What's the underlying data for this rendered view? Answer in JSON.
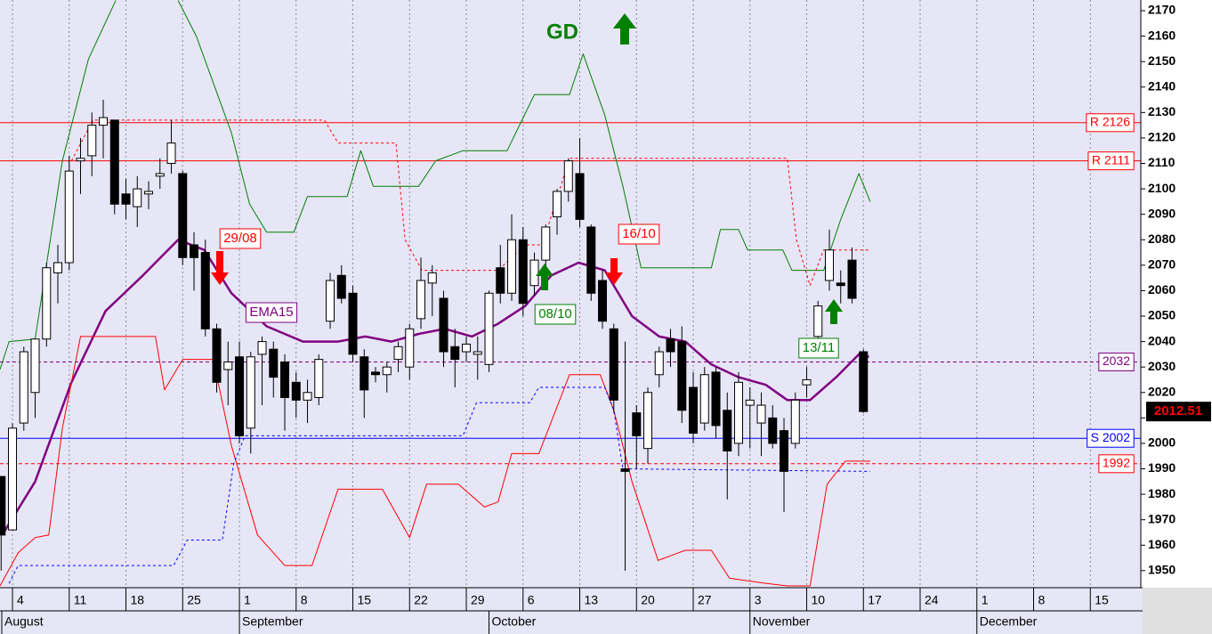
{
  "chart_data": {
    "type": "candlestick",
    "ylim": [
      1943.3,
      2174.2
    ],
    "yticks": [
      1950,
      1960,
      1970,
      1980,
      1990,
      2000,
      2010,
      2020,
      2030,
      2040,
      2050,
      2060,
      2070,
      2080,
      2090,
      2100,
      2110,
      2120,
      2130,
      2140,
      2150,
      2160,
      2170
    ],
    "xlim": [
      -1.1,
      99.45
    ],
    "xticks": [
      {
        "value": 0,
        "label": "4"
      },
      {
        "value": 5,
        "label": "11"
      },
      {
        "value": 10,
        "label": "18"
      },
      {
        "value": 15,
        "label": "25"
      },
      {
        "value": 20,
        "label": "1"
      },
      {
        "value": 25,
        "label": "8"
      },
      {
        "value": 30,
        "label": "15"
      },
      {
        "value": 35,
        "label": "22"
      },
      {
        "value": 40,
        "label": "29"
      },
      {
        "value": 45,
        "label": "6"
      },
      {
        "value": 50,
        "label": "13"
      },
      {
        "value": 55,
        "label": "20"
      },
      {
        "value": 60,
        "label": "27"
      },
      {
        "value": 65,
        "label": "3"
      },
      {
        "value": 70,
        "label": "10"
      },
      {
        "value": 75,
        "label": "17"
      },
      {
        "value": 80,
        "label": "24"
      },
      {
        "value": 85,
        "label": "1"
      },
      {
        "value": 90,
        "label": "8"
      },
      {
        "value": 95,
        "label": "15"
      }
    ],
    "month_ticks": [
      {
        "value": -1,
        "label": "August"
      },
      {
        "value": 20,
        "label": "September"
      },
      {
        "value": 42,
        "label": "October"
      },
      {
        "value": 65,
        "label": "November"
      },
      {
        "value": 85,
        "label": "December"
      }
    ],
    "grid": true,
    "candles": {
      "up_color": "#ffffff",
      "down_color": "#000000",
      "x": [
        -1,
        0,
        1,
        2,
        3,
        4,
        5,
        6,
        7,
        8,
        9,
        10,
        11,
        12,
        13,
        14,
        15,
        16,
        17,
        18,
        19,
        20,
        21,
        22,
        23,
        24,
        25,
        26,
        27,
        28,
        29,
        30,
        31,
        32,
        33,
        34,
        35,
        36,
        37,
        38,
        39,
        40,
        41,
        42,
        43,
        44,
        45,
        46,
        47,
        48,
        49,
        50,
        51,
        52,
        53,
        54,
        55,
        56,
        57,
        58,
        59,
        60,
        61,
        62,
        63,
        64,
        65,
        66,
        67,
        68,
        69,
        70,
        71,
        72,
        73,
        74,
        75
      ],
      "open": [
        1987,
        1966,
        2008,
        2020,
        2041,
        2067,
        2071,
        2111,
        2113,
        2125,
        2127,
        2098,
        2093,
        2098,
        2105,
        2110,
        2106,
        2078,
        2075,
        2045,
        2029,
        2034,
        2006,
        2035,
        2037,
        2032,
        2024,
        2017,
        2018,
        2048,
        2066,
        2059,
        2034,
        2028,
        2027,
        2033,
        2030,
        2049,
        2063,
        2057,
        2038,
        2036,
        2035,
        2031,
        2069,
        2059,
        2080,
        2062,
        2072,
        2089,
        2099,
        2106,
        2085,
        2064,
        2045,
        1990,
        2012,
        1998,
        2027,
        2041,
        2040,
        2022,
        2008,
        2028,
        2013,
        2000,
        2015,
        2008,
        2010,
        2005,
        2000,
        2023,
        2042,
        2064,
        2063,
        2072,
        2036
      ],
      "high": [
        1987,
        2008,
        2038,
        2041,
        2071,
        2078,
        2113,
        2120,
        2130,
        2135,
        2127,
        2104,
        2105,
        2103,
        2112,
        2127,
        2107,
        2083,
        2080,
        2047,
        2040,
        2040,
        2036,
        2042,
        2040,
        2035,
        2028,
        2025,
        2035,
        2067,
        2070,
        2062,
        2037,
        2030,
        2032,
        2040,
        2047,
        2073,
        2070,
        2060,
        2045,
        2042,
        2042,
        2060,
        2078,
        2090,
        2085,
        2075,
        2086,
        2100,
        2112,
        2120,
        2086,
        2068,
        2047,
        2040,
        2015,
        2022,
        2038,
        2045,
        2046,
        2028,
        2030,
        2030,
        2020,
        2028,
        2022,
        2020,
        2015,
        2010,
        2020,
        2030,
        2056,
        2084,
        2068,
        2077,
        2037
      ],
      "low": [
        1950,
        1966,
        2005,
        2010,
        2038,
        2055,
        2068,
        2098,
        2105,
        2112,
        2090,
        2088,
        2085,
        2092,
        2100,
        2106,
        2070,
        2060,
        2042,
        2020,
        2015,
        2000,
        1996,
        2015,
        2018,
        2005,
        2010,
        2008,
        2015,
        2045,
        2055,
        2032,
        2010,
        2024,
        2020,
        2028,
        2025,
        2045,
        2050,
        2030,
        2022,
        2032,
        2025,
        2028,
        2055,
        2056,
        2050,
        2058,
        2068,
        2082,
        2095,
        2085,
        2056,
        2045,
        2012,
        1950,
        1990,
        1992,
        2022,
        2030,
        2008,
        2000,
        2005,
        2002,
        1978,
        1995,
        1998,
        1995,
        1998,
        1973,
        1998,
        2018,
        2040,
        2060,
        2055,
        2055,
        2012
      ],
      "close": [
        1964,
        2006,
        2036,
        2041,
        2069,
        2071,
        2107,
        2112,
        2125,
        2128,
        2094,
        2094,
        2100,
        2099,
        2106,
        2118,
        2073,
        2073,
        2045,
        2024,
        2032,
        2003,
        2034,
        2040,
        2026,
        2018,
        2017,
        2020,
        2033,
        2064,
        2057,
        2035,
        2021,
        2027,
        2030,
        2038,
        2045,
        2064,
        2067,
        2036,
        2033,
        2039,
        2036,
        2059,
        2059,
        2080,
        2055,
        2072,
        2085,
        2099,
        2111,
        2088,
        2059,
        2048,
        2017,
        1989,
        2003,
        2020,
        2036,
        2036,
        2013,
        2004,
        2027,
        2007,
        1997,
        2024,
        2017,
        2015,
        2000,
        1989,
        2017,
        2025,
        2054,
        2076,
        2062,
        2057,
        2012.51
      ]
    },
    "lines": [
      {
        "name": "EMA15",
        "color": "#800080",
        "width": 2.5,
        "dashed": false,
        "x": [
          -0.9,
          2.0,
          5.2,
          8.2,
          11.5,
          14.6,
          16.9,
          19.3,
          22.4,
          25.6,
          28.7,
          31.1,
          33.4,
          35.8,
          38.1,
          40.5,
          42.8,
          45.2,
          47.5,
          49.9,
          52.2,
          54.6,
          57.0,
          59.3,
          61.6,
          64.0,
          66.4,
          68.3,
          70.3,
          72.6,
          74.6,
          75.5
        ],
        "values": [
          1964,
          1985,
          2024,
          2052,
          2066,
          2080,
          2076,
          2059,
          2046,
          2040,
          2040,
          2042,
          2040,
          2043,
          2045,
          2042,
          2047,
          2054,
          2066,
          2071,
          2068,
          2050,
          2042,
          2040,
          2031,
          2026,
          2023,
          2017,
          2017,
          2026,
          2035,
          2034
        ]
      },
      {
        "color": "#008000",
        "width": 1,
        "dashed": false,
        "x": [
          -1.1,
          -0.3,
          2.0,
          4.4,
          6.7,
          9.1,
          12,
          14.6,
          16.2,
          19.3,
          20.9,
          22.4,
          24.8,
          26.0,
          29.5,
          30.7,
          31.8,
          35.8,
          37.3,
          39.7,
          43.6,
          46.0,
          49.1,
          50.3,
          52.2,
          53.8,
          55.4,
          61.6,
          62.4,
          64.0,
          64.8,
          67.9,
          68.7,
          71.5,
          73.0,
          74.6,
          75.6
        ],
        "values": [
          2029,
          2040,
          2041,
          2111,
          2151,
          2174,
          null,
          2174,
          2160,
          2122,
          2094,
          2083,
          2083,
          2097,
          2097,
          2115,
          2101,
          2101,
          2111,
          2115,
          2115,
          2137,
          2137,
          2153,
          2129,
          2101,
          2069,
          2069,
          2084,
          2084,
          2076,
          2076,
          2068,
          2068,
          2088,
          2106,
          2095
        ]
      },
      {
        "color": "#ff0000",
        "width": 1,
        "dashed": false,
        "x": [
          -1.1,
          0.5,
          2.0,
          3.2,
          4.4,
          6.0,
          12.6,
          13.4,
          15.0,
          17.7,
          19.3,
          21.6,
          24.0,
          26.4,
          28.7,
          32.6,
          35.0,
          36.5,
          39.3,
          41.6,
          42.8,
          44.0,
          46.4,
          49.1,
          51.8,
          53.0,
          54.6,
          56.9,
          59.3,
          61.6,
          63.2,
          66.4,
          68.3,
          70.3,
          71.8,
          73.4,
          75.6
        ],
        "values": [
          1944,
          1957,
          1963,
          1964,
          2006,
          2042,
          2042,
          2021,
          2033,
          2033,
          1999,
          1964,
          1952,
          1952,
          1982,
          1982,
          1963,
          1984,
          1984,
          1975,
          1977,
          1996,
          1996,
          2027,
          2027,
          2013,
          1985,
          1954,
          1958,
          1958,
          1947,
          1945,
          1944,
          1944,
          1984,
          1993,
          1993
        ]
      },
      {
        "color": "#ff0000",
        "width": 1,
        "dashed": true,
        "x": [
          5.2,
          7.1,
          27.5,
          28.7,
          33.8,
          34.6,
          36.1,
          42.8,
          45.2,
          46.7,
          49.1,
          68.3,
          69.1,
          70.3,
          71.5,
          75.6
        ],
        "values": [
          2111,
          2127,
          2127,
          2118,
          2118,
          2080,
          2068,
          2068,
          2078,
          2078,
          2112,
          2112,
          2080,
          2062,
          2076,
          2076
        ]
      },
      {
        "color": "#0000ff",
        "width": 1,
        "dashed": true,
        "x": [
          -0.3,
          0.5,
          14.2,
          15.4,
          18.5,
          19.5,
          20.5,
          39.7,
          40.9,
          45.6,
          46.4,
          52.2,
          53.0,
          53.8,
          75.6
        ],
        "values": [
          1945,
          1952,
          1952,
          1962,
          1962,
          1992,
          2003,
          2003,
          2016,
          2016,
          2022,
          2022,
          2013,
          1990,
          1989
        ]
      }
    ],
    "levels": [
      {
        "value": 2126,
        "label": "R 2126",
        "color": "#ff0000",
        "dashed": false
      },
      {
        "value": 2111,
        "label": "R 2111",
        "color": "#ff0000",
        "dashed": false
      },
      {
        "value": 2032,
        "label": "2032",
        "color": "#800080",
        "dashed": true
      },
      {
        "value": 2002,
        "label": "S 2002",
        "color": "#0000ff",
        "dashed": false
      },
      {
        "value": 1992,
        "label": "1992",
        "color": "#ff0000",
        "dashed": true
      }
    ],
    "last_price": {
      "value": 2012.51,
      "label": "2012.51"
    },
    "annotations": [
      {
        "text": "GD",
        "color": "#008000"
      },
      {
        "text": "29/08",
        "color": "#ff0000"
      },
      {
        "text": "16/10",
        "color": "#ff0000"
      },
      {
        "text": "08/10",
        "color": "#008000"
      },
      {
        "text": "13/11",
        "color": "#008000"
      },
      {
        "text": "EMA15",
        "color": "#800080"
      }
    ]
  }
}
